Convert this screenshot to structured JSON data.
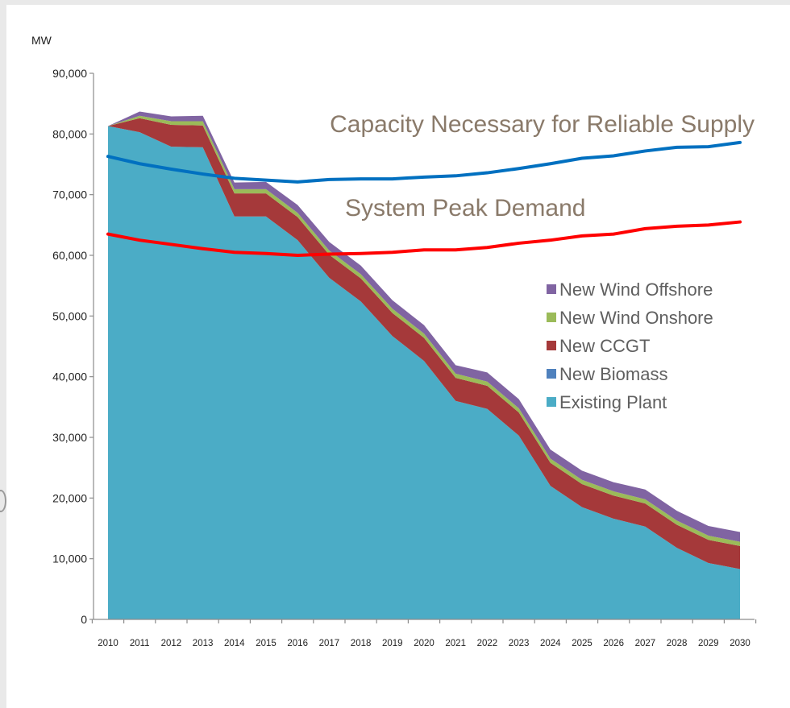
{
  "chart_data": {
    "type": "area",
    "stacked": true,
    "unit_label": "MW",
    "x": [
      "2010",
      "2011",
      "2012",
      "2013",
      "2014",
      "2015",
      "2016",
      "2017",
      "2018",
      "2019",
      "2020",
      "2021",
      "2022",
      "2023",
      "2024",
      "2025",
      "2026",
      "2027",
      "2028",
      "2029",
      "2030"
    ],
    "ylim": [
      0,
      90000
    ],
    "yticks": [
      0,
      10000,
      20000,
      30000,
      40000,
      50000,
      60000,
      70000,
      80000,
      90000
    ],
    "ytick_labels": [
      "0",
      "10,000",
      "20,000",
      "30,000",
      "40,000",
      "50,000",
      "60,000",
      "70,000",
      "80,000",
      "90,000"
    ],
    "grid": false,
    "legend_position": "right",
    "series": [
      {
        "name": "Existing Plant",
        "color": "#4bacc6",
        "values": [
          81300,
          80300,
          77900,
          77800,
          66400,
          66400,
          62500,
          56300,
          52400,
          46700,
          42600,
          36000,
          34700,
          30300,
          22000,
          18500,
          16600,
          15300,
          11800,
          9300,
          8300
        ]
      },
      {
        "name": "New Biomass",
        "color": "#4f81bd",
        "values": [
          0,
          0,
          0,
          0,
          0,
          0,
          0,
          0,
          0,
          0,
          0,
          0,
          0,
          0,
          0,
          0,
          0,
          0,
          0,
          0,
          0
        ]
      },
      {
        "name": "New CCGT",
        "color": "#a5393a",
        "values": [
          0,
          2300,
          3600,
          3600,
          3800,
          3800,
          3800,
          3800,
          3800,
          3800,
          3800,
          3800,
          3800,
          3800,
          3800,
          3800,
          3800,
          3800,
          3800,
          3800,
          3800
        ]
      },
      {
        "name": "New Wind Onshore",
        "color": "#9bbb59",
        "values": [
          0,
          400,
          600,
          700,
          700,
          700,
          700,
          700,
          700,
          700,
          700,
          700,
          700,
          700,
          700,
          700,
          700,
          700,
          700,
          700,
          700
        ]
      },
      {
        "name": "New Wind Offshore",
        "color": "#8064a2",
        "values": [
          0,
          700,
          800,
          900,
          1100,
          1200,
          1300,
          1400,
          1400,
          1400,
          1400,
          1400,
          1500,
          1500,
          1500,
          1500,
          1500,
          1600,
          1600,
          1600,
          1600
        ]
      }
    ],
    "lines": [
      {
        "label": "Capacity Necessary for Reliable Supply",
        "color": "#0070c0",
        "values": [
          76300,
          75100,
          74200,
          73400,
          72700,
          72400,
          72100,
          72500,
          72600,
          72600,
          72900,
          73100,
          73600,
          74300,
          75100,
          76000,
          76400,
          77200,
          77800,
          77900,
          78600
        ]
      },
      {
        "label": "System Peak Demand",
        "color": "#ff0000",
        "values": [
          63500,
          62500,
          61800,
          61100,
          60500,
          60300,
          60000,
          60200,
          60300,
          60500,
          60900,
          60900,
          61300,
          62000,
          62500,
          63200,
          63500,
          64400,
          64800,
          65000,
          65500
        ]
      }
    ],
    "legend_order": [
      "New Wind Offshore",
      "New Wind Onshore",
      "New CCGT",
      "New Biomass",
      "Existing Plant"
    ]
  }
}
